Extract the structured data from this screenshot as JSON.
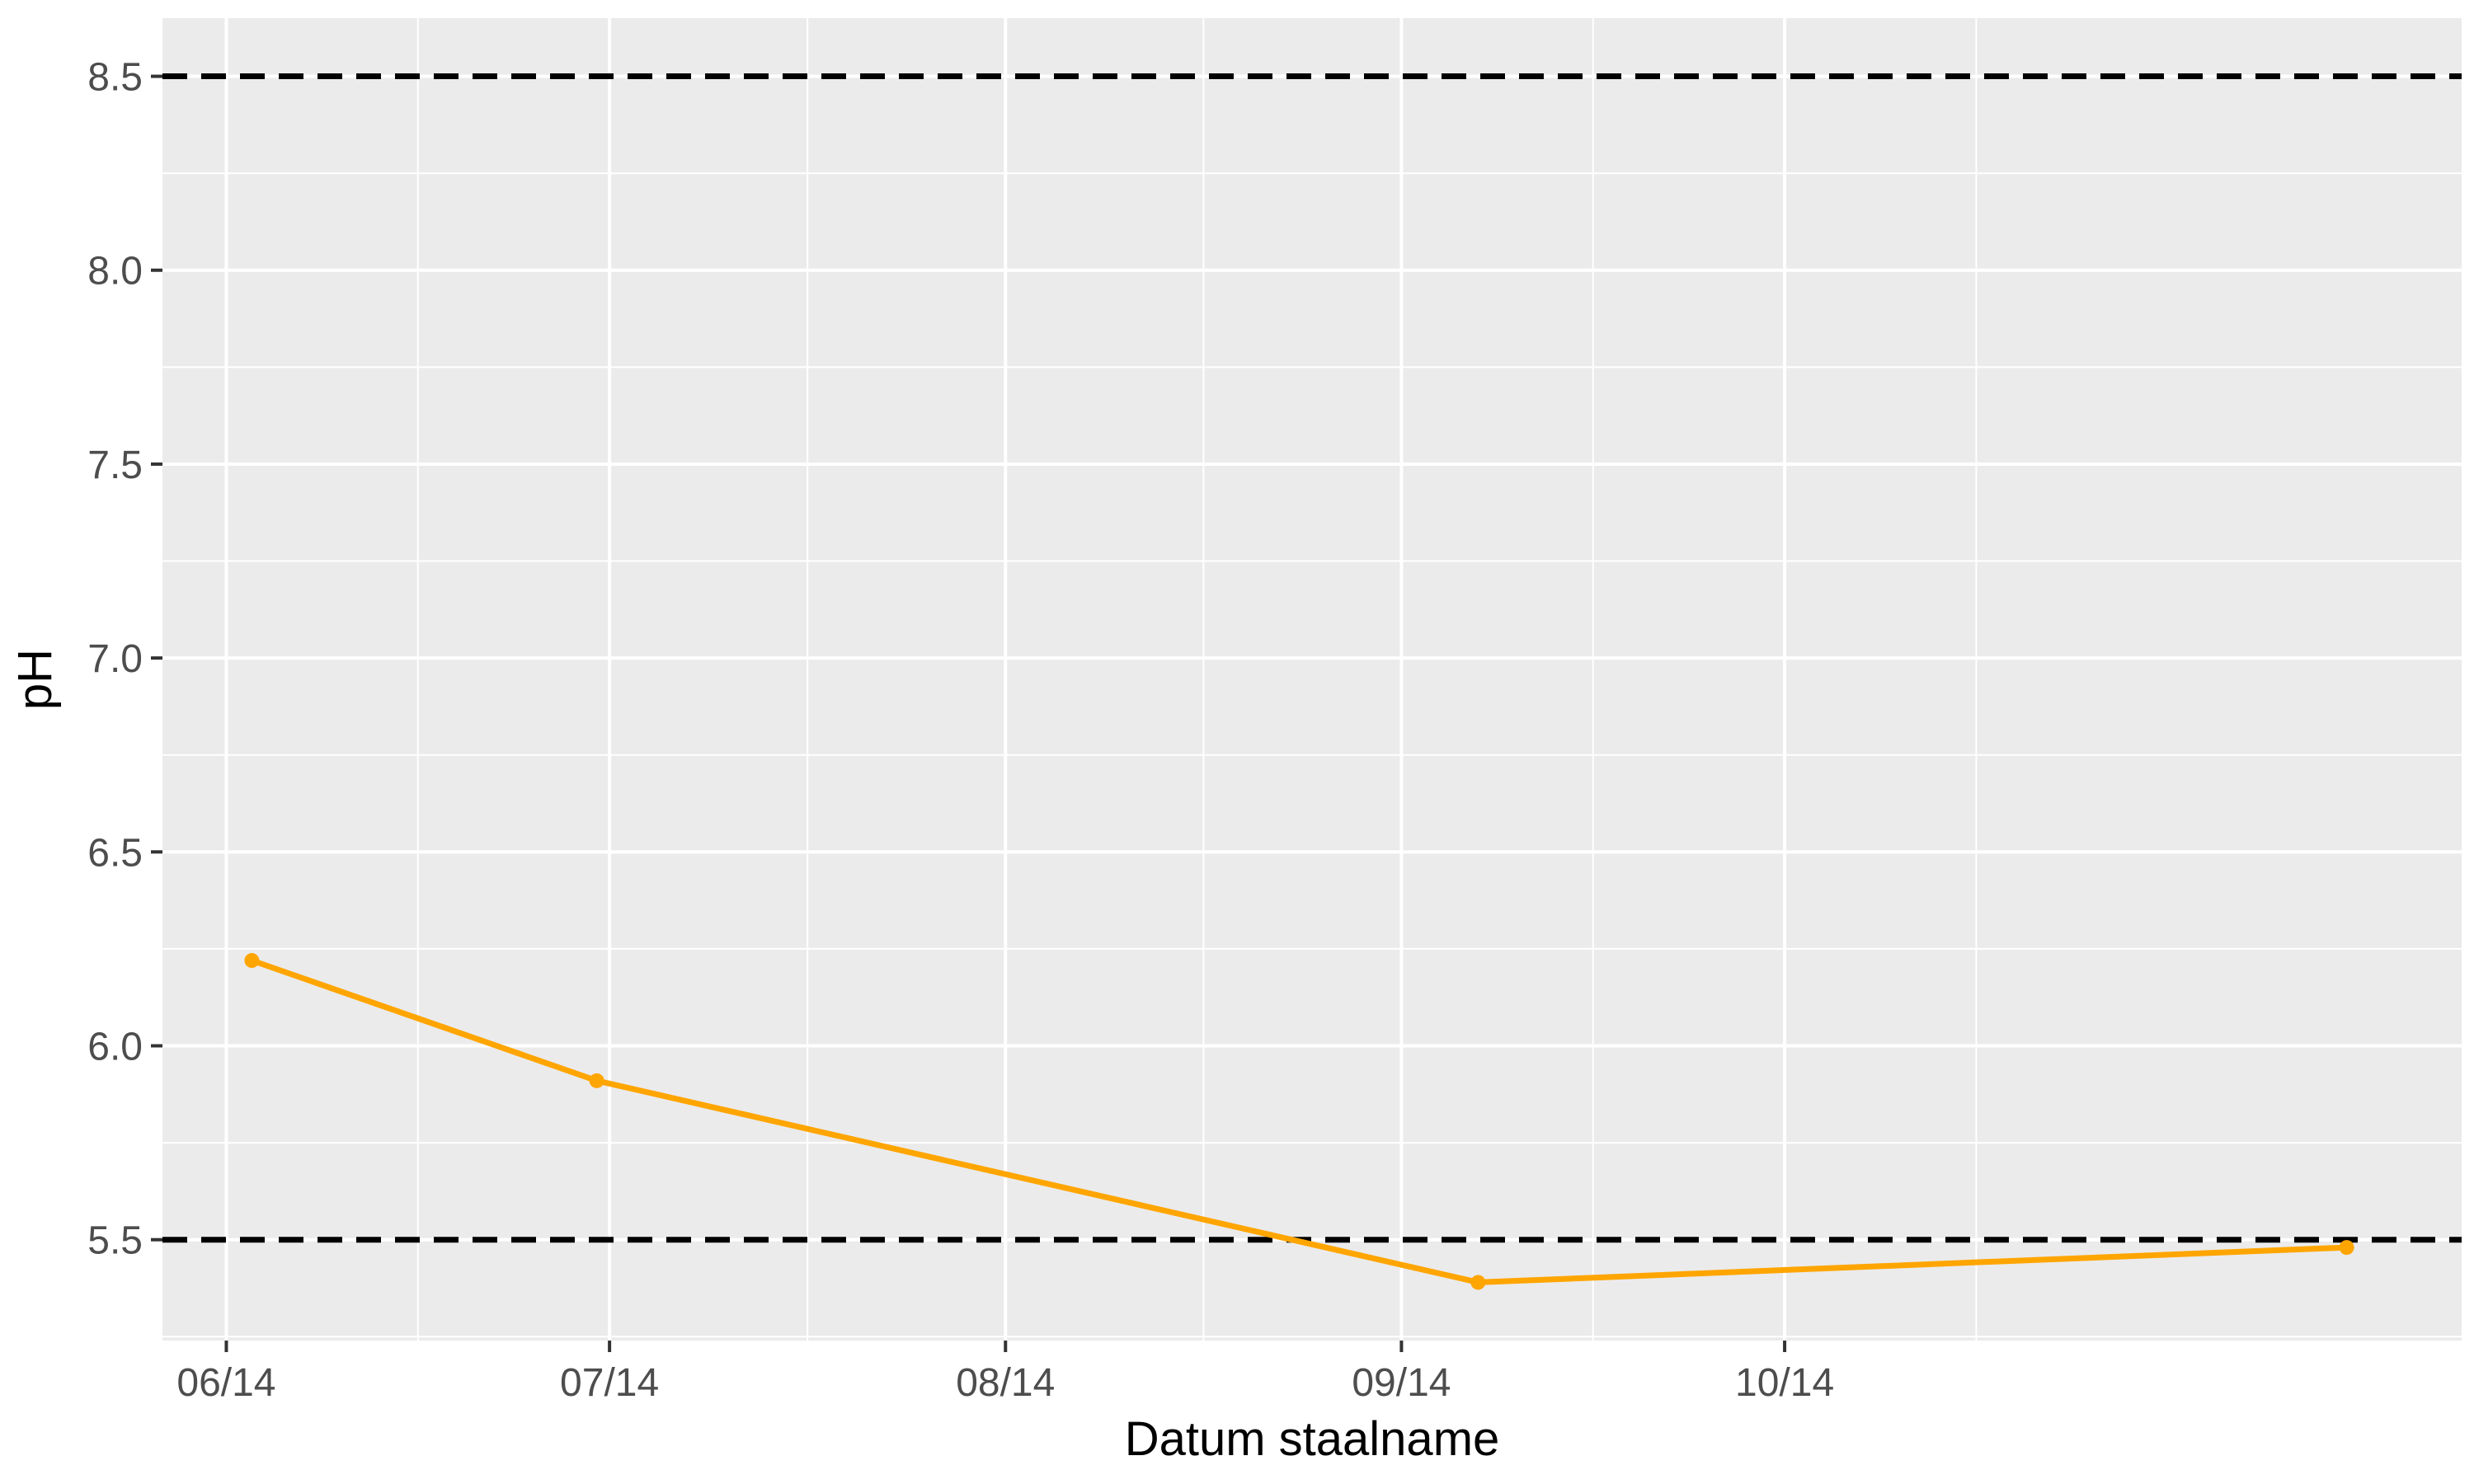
{
  "chart_data": {
    "type": "line",
    "title": "",
    "xlabel": "Datum staalname",
    "ylabel": "pH",
    "x_tick_labels": [
      "06/14",
      "07/14",
      "08/14",
      "09/14",
      "10/14"
    ],
    "x_tick_dates": [
      "2014-06-01",
      "2014-07-01",
      "2014-08-01",
      "2014-09-01",
      "2014-10-01"
    ],
    "xlim": [
      "2014-05-27",
      "2014-11-23"
    ],
    "y_ticks": [
      5.5,
      6.0,
      6.5,
      7.0,
      7.5,
      8.0,
      8.5
    ],
    "y_tick_labels": [
      "5.5",
      "6.0",
      "6.5",
      "7.0",
      "7.5",
      "8.0",
      "8.5"
    ],
    "ylim": [
      5.24,
      8.65
    ],
    "grid": true,
    "series": [
      {
        "color": "#FFA500",
        "points": [
          {
            "x": "2014-06-03",
            "y": 6.22
          },
          {
            "x": "2014-06-30",
            "y": 5.91
          },
          {
            "x": "2014-09-07",
            "y": 5.39
          },
          {
            "x": "2014-11-14",
            "y": 5.48
          }
        ]
      }
    ],
    "reference_lines": [
      {
        "y": 8.5,
        "style": "dashed",
        "color": "#000000"
      },
      {
        "y": 5.5,
        "style": "dashed",
        "color": "#000000"
      }
    ],
    "panel_color": "#EBEBEB",
    "grid_color": "#FFFFFF"
  }
}
